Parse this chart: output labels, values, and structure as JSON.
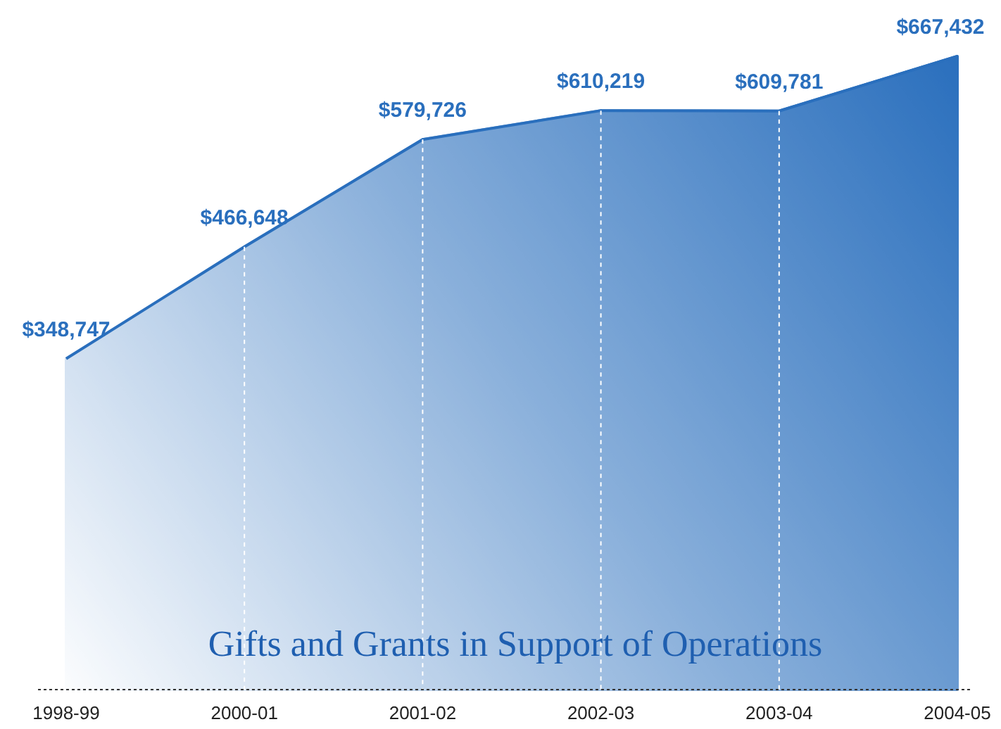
{
  "chart_data": {
    "type": "area",
    "title": "Gifts and Grants in Support of Operations",
    "categories": [
      "1998-99",
      "2000-01",
      "2001-02",
      "2002-03",
      "2003-04",
      "2004-05"
    ],
    "values": [
      348747,
      466648,
      579726,
      610219,
      609781,
      667432
    ],
    "value_labels": [
      "$348,747",
      "$466,648",
      "$579,726",
      "$610,219",
      "$609,781",
      "$667,432"
    ],
    "color": "#2a6fbd",
    "grid": "x"
  }
}
